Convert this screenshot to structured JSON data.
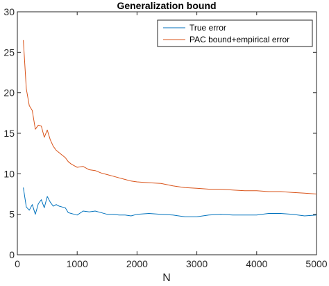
{
  "chart_data": {
    "type": "line",
    "title": "Generalization bound",
    "xlabel": "N",
    "ylabel": "",
    "xlim": [
      0,
      5000
    ],
    "ylim": [
      0,
      30
    ],
    "xticks": [
      0,
      1000,
      2000,
      3000,
      4000,
      5000
    ],
    "yticks": [
      0,
      5,
      10,
      15,
      20,
      25,
      30
    ],
    "grid": false,
    "legend_position": "top-right",
    "series": [
      {
        "name": "True error",
        "color": "#0072BD",
        "x": [
          100,
          150,
          200,
          250,
          300,
          350,
          400,
          450,
          500,
          550,
          600,
          650,
          700,
          750,
          800,
          850,
          900,
          950,
          1000,
          1100,
          1200,
          1300,
          1400,
          1500,
          1600,
          1700,
          1800,
          1900,
          2000,
          2200,
          2400,
          2600,
          2800,
          3000,
          3200,
          3400,
          3600,
          3800,
          4000,
          4200,
          4400,
          4600,
          4800,
          5000
        ],
        "y": [
          8.3,
          5.9,
          5.5,
          6.2,
          5.0,
          6.3,
          6.8,
          5.8,
          7.2,
          6.5,
          6.0,
          6.2,
          6.0,
          5.9,
          5.8,
          5.2,
          5.1,
          5.0,
          4.9,
          5.4,
          5.3,
          5.4,
          5.2,
          5.0,
          5.0,
          4.9,
          4.9,
          4.8,
          5.0,
          5.1,
          5.0,
          4.9,
          4.7,
          4.7,
          4.9,
          5.0,
          4.9,
          4.9,
          4.9,
          5.1,
          5.1,
          5.0,
          4.8,
          4.9
        ]
      },
      {
        "name": "PAC bound+empirical error",
        "color": "#D95319",
        "x": [
          100,
          150,
          200,
          250,
          300,
          350,
          400,
          450,
          500,
          550,
          600,
          650,
          700,
          750,
          800,
          850,
          900,
          950,
          1000,
          1100,
          1200,
          1300,
          1400,
          1500,
          1600,
          1700,
          1800,
          1900,
          2000,
          2200,
          2400,
          2600,
          2800,
          3000,
          3200,
          3400,
          3600,
          3800,
          4000,
          4200,
          4400,
          4600,
          4800,
          5000
        ],
        "y": [
          26.5,
          20.5,
          18.4,
          17.8,
          15.5,
          16.0,
          15.9,
          14.5,
          15.4,
          14.2,
          13.4,
          12.9,
          12.6,
          12.3,
          12.0,
          11.5,
          11.2,
          11.0,
          10.8,
          10.9,
          10.5,
          10.4,
          10.1,
          9.9,
          9.7,
          9.5,
          9.3,
          9.1,
          9.0,
          8.9,
          8.8,
          8.5,
          8.3,
          8.2,
          8.1,
          8.1,
          8.0,
          7.9,
          7.9,
          7.8,
          7.8,
          7.7,
          7.6,
          7.5
        ]
      }
    ]
  }
}
